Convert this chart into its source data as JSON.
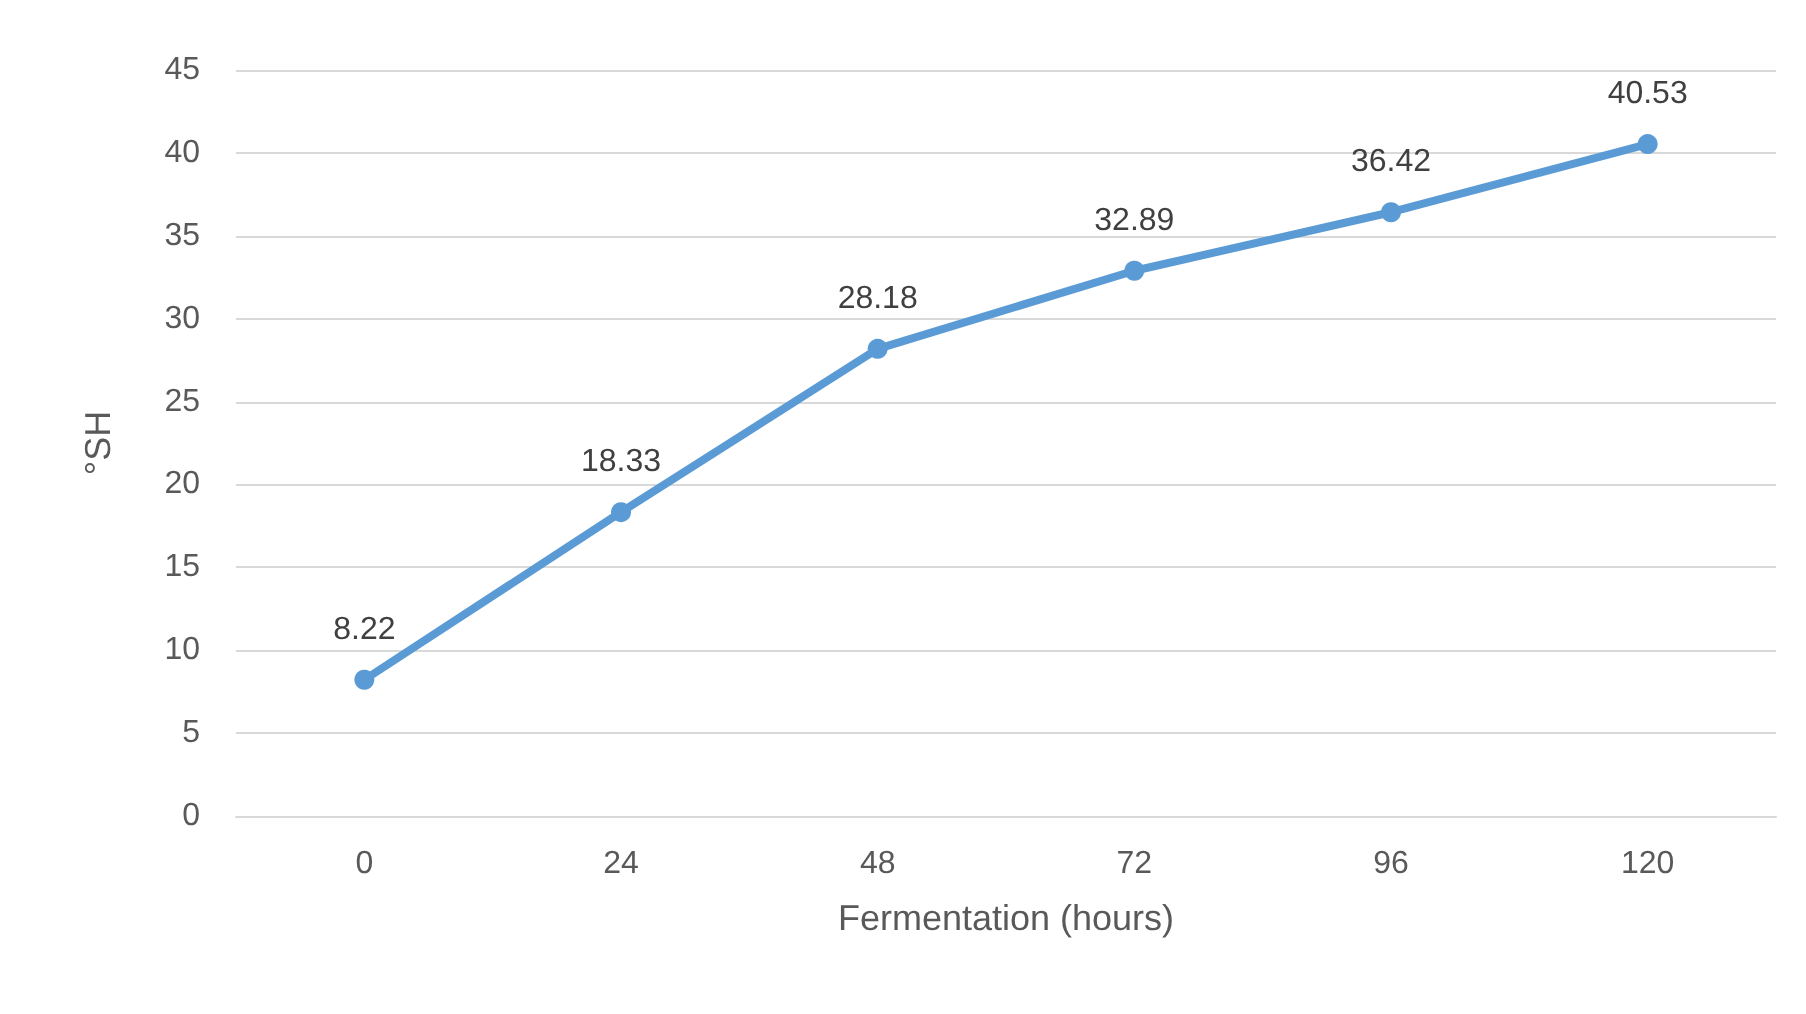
{
  "chart_data": {
    "type": "line",
    "xlabel": "Fermentation (hours)",
    "ylabel": "°SH",
    "categories": [
      "0",
      "24",
      "48",
      "72",
      "96",
      "120"
    ],
    "series": [
      {
        "color": "#5b9bd5",
        "values": [
          8.22,
          18.33,
          28.18,
          32.89,
          36.42,
          40.53
        ]
      }
    ],
    "ylim": [
      0,
      45
    ],
    "yticks": [
      0,
      5,
      10,
      15,
      20,
      25,
      30,
      35,
      40,
      45
    ],
    "grid": "y",
    "data_labels": true,
    "marker": "circle",
    "line_style": "solid"
  }
}
